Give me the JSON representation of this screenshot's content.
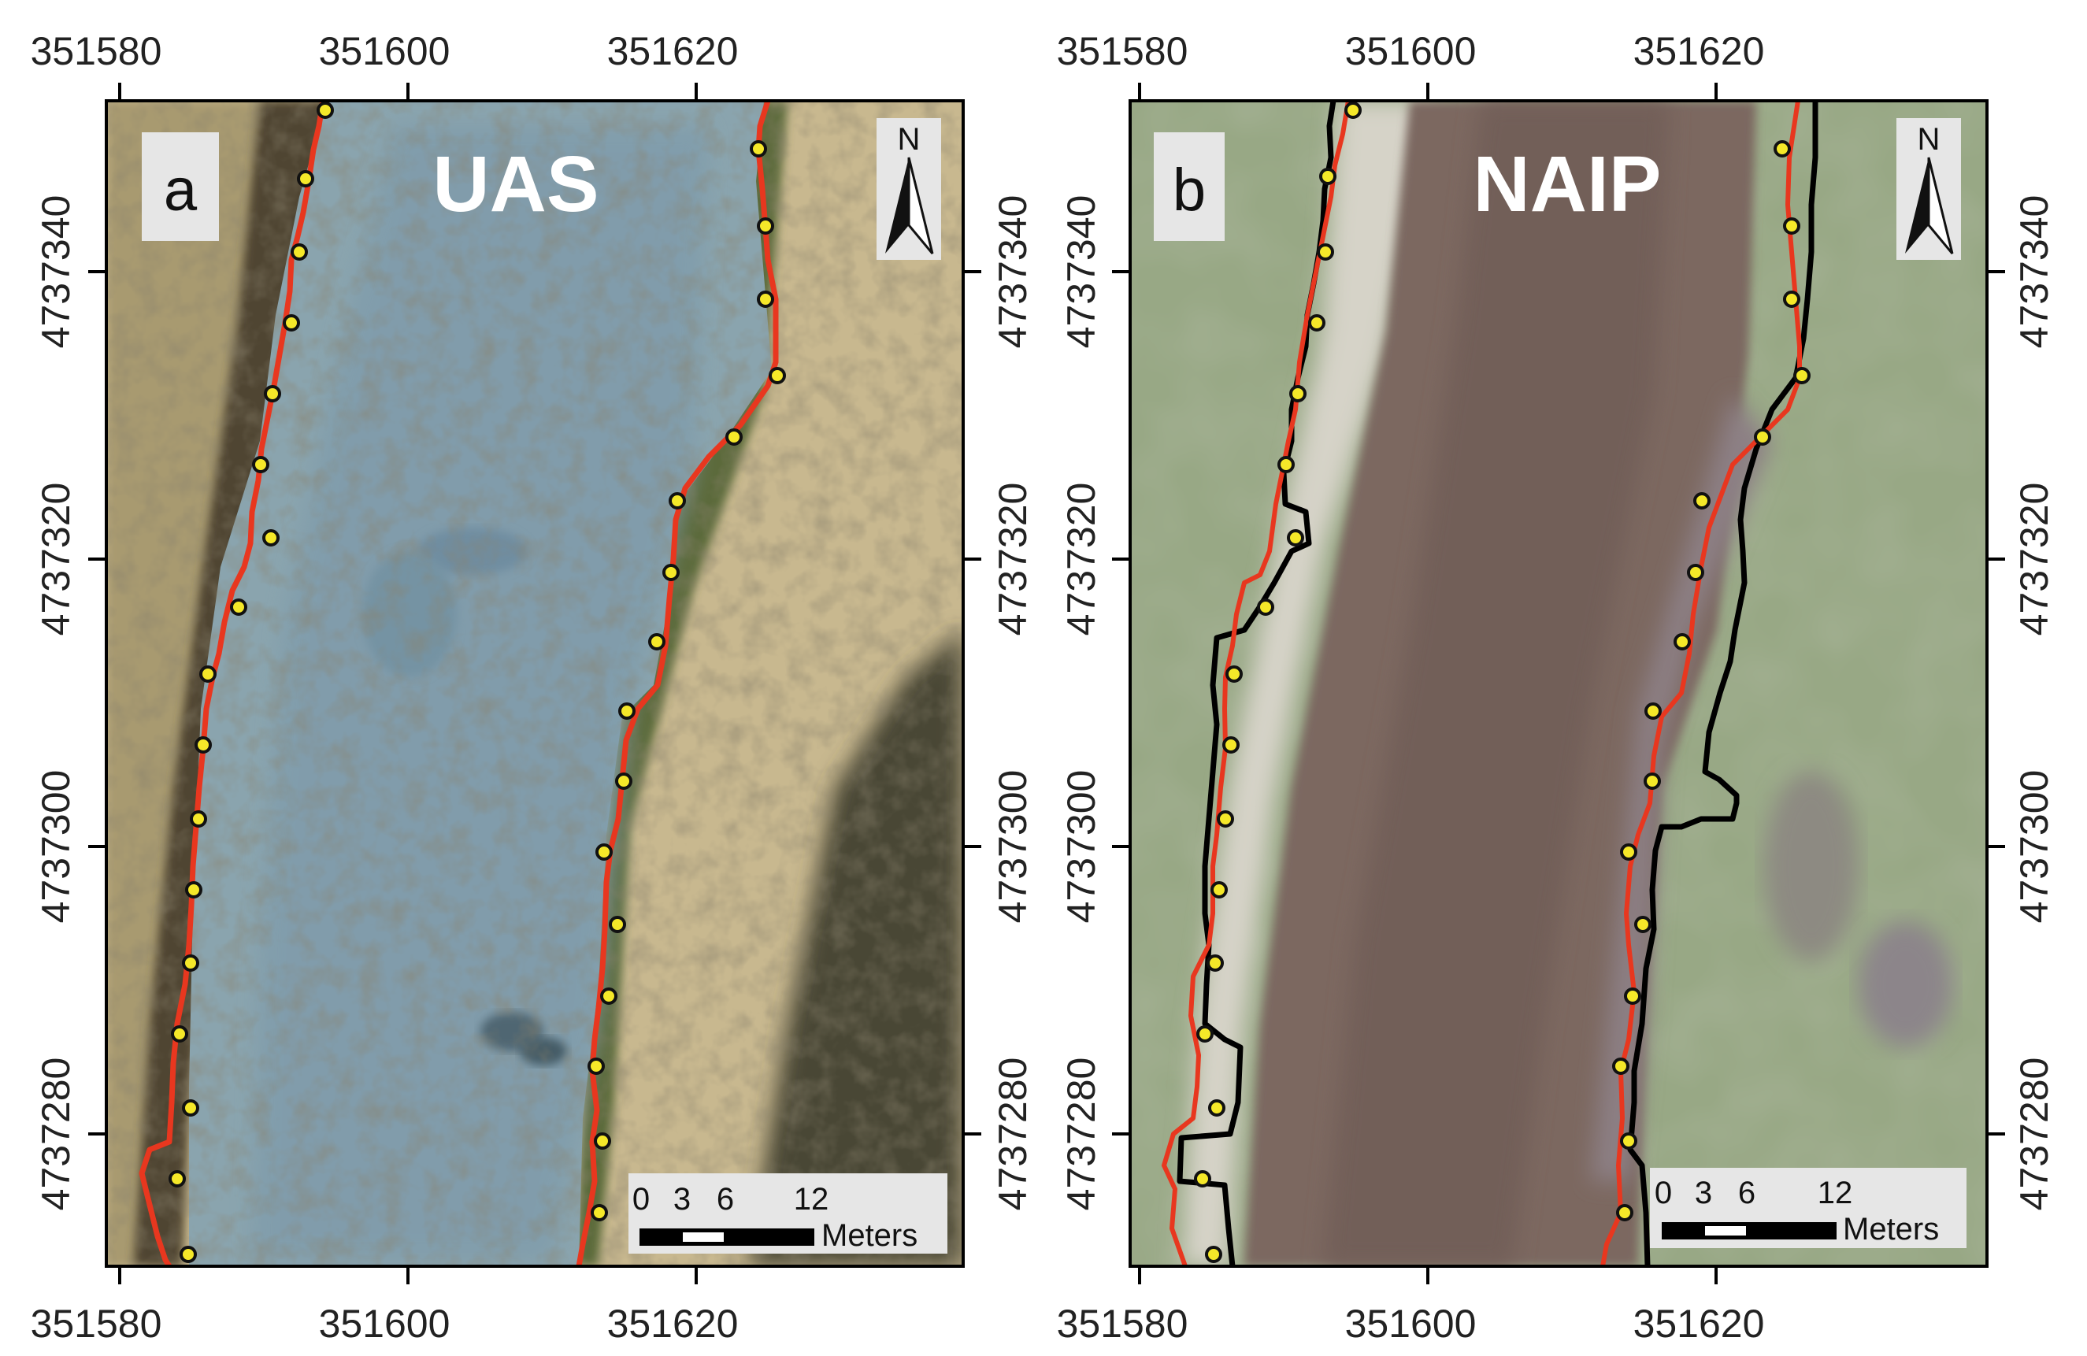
{
  "figure": {
    "panels": [
      {
        "letter": "a",
        "title": "UAS",
        "x_ticks": [
          "351580",
          "351600",
          "351620"
        ],
        "y_ticks": [
          "4737340",
          "4737320",
          "4737300",
          "4737280"
        ],
        "north_label": "N",
        "scale_bar": {
          "ticks": [
            "0",
            "3",
            "6",
            "12"
          ],
          "unit": "Meters"
        },
        "imagery_colors": {
          "water": "#8aa3ae",
          "bank": "#c9b98f",
          "vegetation": "#4d4a32"
        }
      },
      {
        "letter": "b",
        "title": "NAIP",
        "x_ticks": [
          "351580",
          "351600",
          "351620"
        ],
        "y_ticks": [
          "4737340",
          "4737320",
          "4737300",
          "4737280"
        ],
        "north_label": "N",
        "scale_bar": {
          "ticks": [
            "0",
            "3",
            "6",
            "12"
          ],
          "unit": "Meters"
        },
        "imagery_colors": {
          "water": "#7b6660",
          "bank": "#97a784",
          "sand": "#d6d3c5"
        }
      }
    ],
    "line_colors": {
      "red_boundary": "#e8371f",
      "black_boundary": "#000000",
      "points": "#f5e829"
    }
  }
}
